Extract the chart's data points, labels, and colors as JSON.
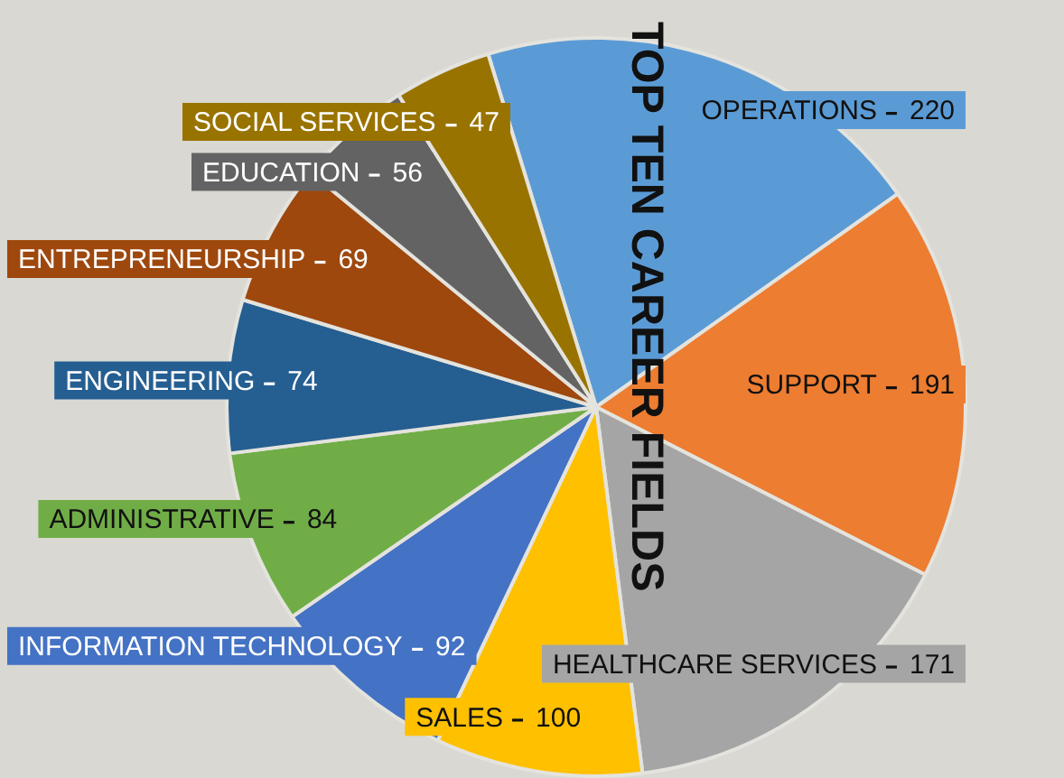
{
  "chart_data": {
    "type": "pie",
    "title": "TOP TEN CAREER FIELDS",
    "categories": [
      "OPERATIONS",
      "SUPPORT",
      "HEALTHCARE SERVICES",
      "SALES",
      "INFORMATION TECHNOLOGY",
      "ADMINISTRATIVE",
      "ENGINEERING",
      "ENTREPRENEURSHIP",
      "EDUCATION",
      "SOCIAL SERVICES"
    ],
    "values": [
      220,
      191,
      171,
      100,
      92,
      84,
      74,
      69,
      56,
      47
    ],
    "colors": [
      "#5b9bd5",
      "#ed7d31",
      "#a5a5a5",
      "#ffc000",
      "#4472c4",
      "#70ad47",
      "#255e91",
      "#9e480e",
      "#636363",
      "#997300"
    ],
    "data_labels": true,
    "legend": false
  }
}
